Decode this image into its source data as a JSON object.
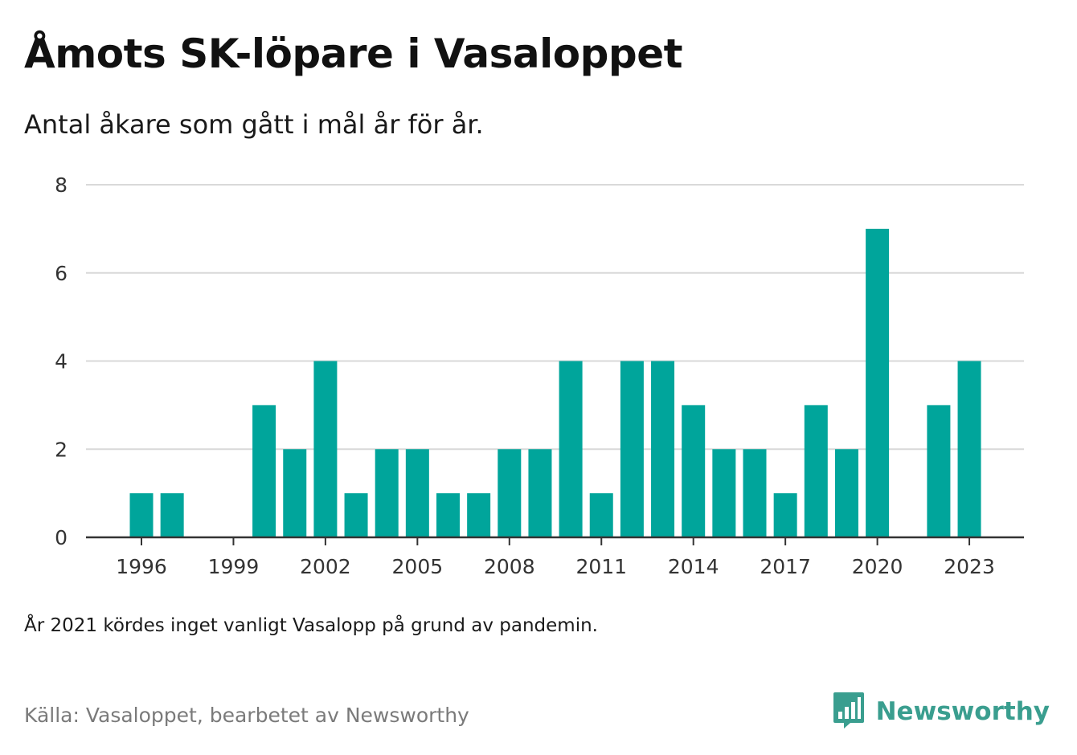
{
  "title": "Åmots SK-löpare i Vasaloppet",
  "subtitle": "Antal åkare som gått i mål år för år.",
  "note": "År 2021 kördes inget vanligt Vasalopp på grund av pandemin.",
  "source": "Källa: Vasaloppet, bearbetet av Newsworthy",
  "brand": {
    "name": "Newsworthy",
    "icon": "newsworthy-logo-icon",
    "color": "#3a9e8f"
  },
  "colors": {
    "bar": "#00a59b",
    "grid": "#d9d9d9",
    "axis": "#333333"
  },
  "chart_data": {
    "type": "bar",
    "title": "Åmots SK-löpare i Vasaloppet",
    "subtitle": "Antal åkare som gått i mål år för år.",
    "xlabel": "",
    "ylabel": "",
    "categories": [
      1996,
      1997,
      1998,
      1999,
      2000,
      2001,
      2002,
      2003,
      2004,
      2005,
      2006,
      2007,
      2008,
      2009,
      2010,
      2011,
      2012,
      2013,
      2014,
      2015,
      2016,
      2017,
      2018,
      2019,
      2020,
      2021,
      2022,
      2023
    ],
    "values": [
      1,
      1,
      0,
      0,
      3,
      2,
      4,
      1,
      2,
      2,
      1,
      1,
      2,
      2,
      4,
      1,
      4,
      4,
      3,
      2,
      2,
      1,
      3,
      2,
      7,
      null,
      3,
      4
    ],
    "ylim": [
      0,
      8
    ],
    "yticks": [
      0,
      2,
      4,
      6,
      8
    ],
    "xticks": [
      1996,
      1999,
      2002,
      2005,
      2008,
      2011,
      2014,
      2017,
      2020,
      2023
    ],
    "grid": true,
    "legend": "none"
  }
}
